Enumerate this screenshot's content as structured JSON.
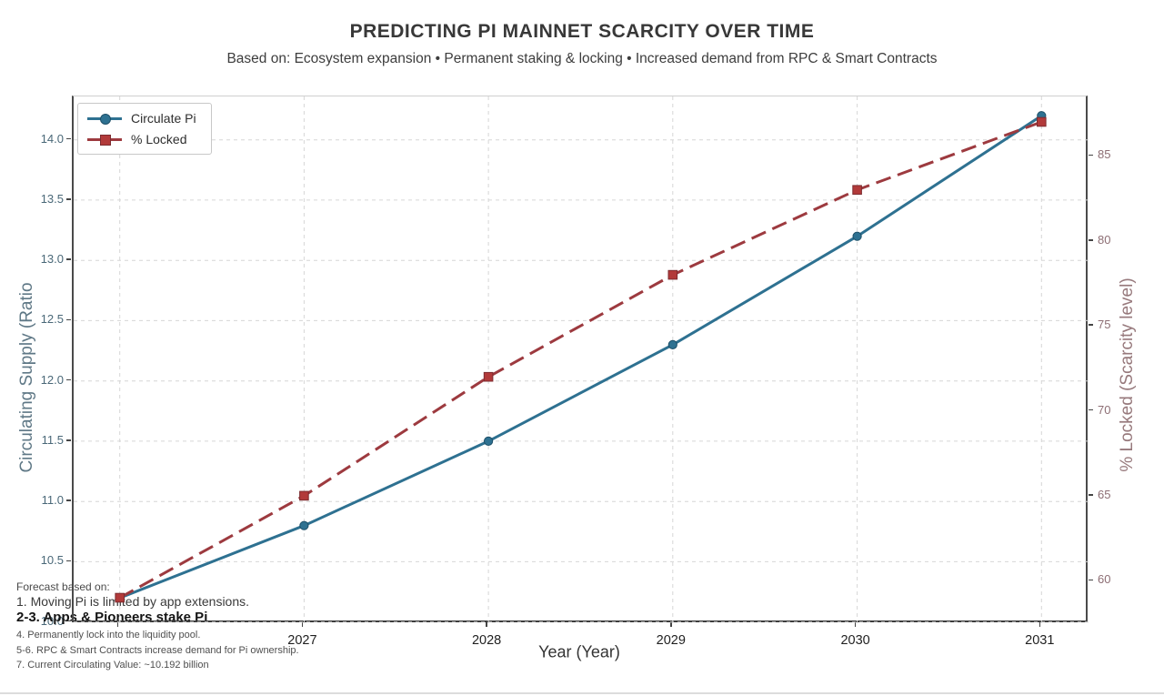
{
  "chart_data": {
    "type": "line",
    "title": "PREDICTING PI MAINNET SCARCITY OVER TIME",
    "subtitle": "Based on: Ecosystem expansion • Permanent staking & locking • Increased demand from RPC & Smart Contracts",
    "xlabel": "Year (Year)",
    "ylabel_left": "Circulating Supply (Ratio",
    "ylabel_right": "% Locked (Scarcity level)",
    "x": [
      2026,
      2027,
      2028,
      2029,
      2030,
      2031
    ],
    "series": [
      {
        "name": "Circulate Pi",
        "axis": "left",
        "line_style": "solid",
        "marker": "circle",
        "color": "#2e7191",
        "marker_color": "#2e7191",
        "marker_edge": "#1d4f68",
        "values": [
          10.2,
          10.8,
          11.5,
          12.3,
          13.2,
          14.2
        ]
      },
      {
        "name": "% Locked",
        "axis": "right",
        "line_style": "dashed",
        "marker": "square",
        "color": "#9d3a3f",
        "marker_color": "#b23a3a",
        "marker_edge": "#7c2b2f",
        "values": [
          59,
          65,
          72,
          78,
          83,
          87
        ]
      }
    ],
    "xticks": {
      "values": [
        2026,
        2027,
        2028,
        2029,
        2030,
        2031
      ],
      "labels": [
        "",
        "2027",
        "2028",
        "2029",
        "2030",
        "2031"
      ]
    },
    "yticks_left": {
      "values": [
        10.0,
        10.5,
        11.0,
        11.5,
        12.0,
        12.5,
        13.0,
        13.5,
        14.0
      ],
      "labels": [
        "10.0",
        "10.5",
        "11.0",
        "11.5",
        "12.0",
        "12.5",
        "13.0",
        "13.5",
        "14.0"
      ]
    },
    "yticks_right": {
      "values": [
        60,
        65,
        70,
        75,
        80,
        85
      ],
      "labels": [
        "60",
        "65",
        "70",
        "75",
        "80",
        "85"
      ]
    },
    "xlim": [
      2025.75,
      2031.26
    ],
    "ylim_left": [
      9.99,
      14.36
    ],
    "ylim_right": [
      57.5,
      88.5
    ],
    "grid": true,
    "legend_position": "upper-left"
  },
  "annotations": {
    "lines": [
      "Forecast based on:",
      "1. Moving Pi is limited by app extensions.",
      "2-3. Apps & Pioneers stake Pi",
      "4. Permanently lock into the liquidity pool.",
      "5-6. RPC & Smart Contracts increase demand for Pi ownership.",
      "7. Current Circulating Value: ~10.192 billion"
    ]
  },
  "colors": {
    "grid": "#d6d6d6",
    "spine": "#4a4a4a",
    "spine_top": "#cfcfcf",
    "tick_mark": "#444444",
    "left_axis_text": "#4a6878",
    "right_axis_text": "#8d6e74",
    "x_axis_text": "#1f1f1f",
    "title_text": "#383838"
  }
}
